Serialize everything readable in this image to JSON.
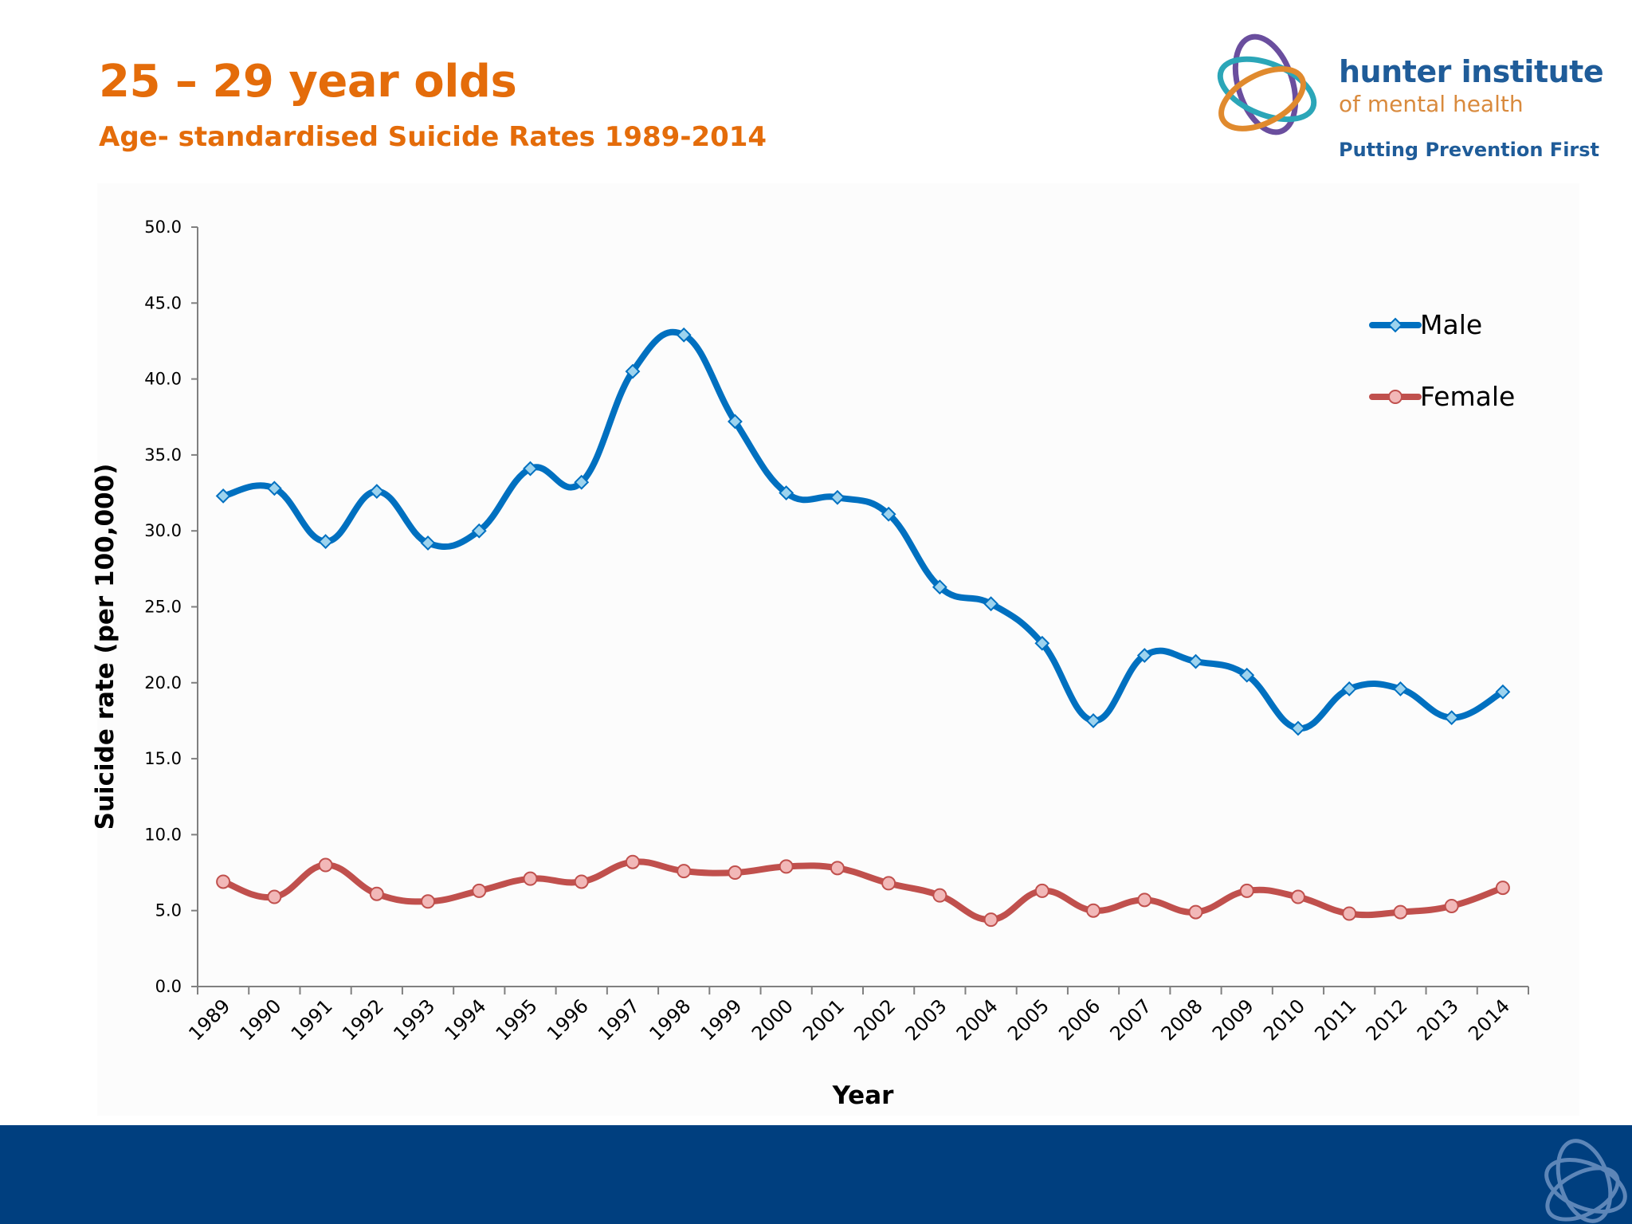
{
  "slide": {
    "title": "25 – 29 year olds",
    "subtitle": "Age- standardised Suicide Rates 1989-2014",
    "title_color": "#E46C0A"
  },
  "logo": {
    "name": "hunter institute",
    "sub": "of mental health",
    "tagline": "Putting Prevention First",
    "colors": {
      "name": "#1F5C99",
      "sub": "#D98A3D",
      "purple": "#6A4E9E",
      "teal": "#2BA6B8",
      "orange": "#E08A2E"
    }
  },
  "footer": {
    "band_color": "#003F7F"
  },
  "chart_data": {
    "type": "line",
    "title": "",
    "xlabel": "Year",
    "ylabel": "Suicide rate (per 100,000)",
    "ylim": [
      0,
      50
    ],
    "ytick_step": 5,
    "ytick_labels": [
      "0.0",
      "5.0",
      "10.0",
      "15.0",
      "20.0",
      "25.0",
      "30.0",
      "35.0",
      "40.0",
      "45.0",
      "50.0"
    ],
    "grid": false,
    "legend_position": "right",
    "categories": [
      "1989",
      "1990",
      "1991",
      "1992",
      "1993",
      "1994",
      "1995",
      "1996",
      "1997",
      "1998",
      "1999",
      "2000",
      "2001",
      "2002",
      "2003",
      "2004",
      "2005",
      "2006",
      "2007",
      "2008",
      "2009",
      "2010",
      "2011",
      "2012",
      "2013",
      "2014"
    ],
    "series": [
      {
        "name": "Male",
        "color": "#0070C0",
        "marker": "diamond",
        "marker_fill": "#9DD3EE",
        "values": [
          32.3,
          32.8,
          29.3,
          32.6,
          29.2,
          30.0,
          34.1,
          33.2,
          40.5,
          42.9,
          37.2,
          32.5,
          32.2,
          31.1,
          26.3,
          25.2,
          22.6,
          17.5,
          21.8,
          21.4,
          20.5,
          17.0,
          19.6,
          19.6,
          17.7,
          19.4
        ]
      },
      {
        "name": "Female",
        "color": "#C0504D",
        "marker": "circle",
        "marker_fill": "#F2B8B8",
        "values": [
          6.9,
          5.9,
          8.0,
          6.1,
          5.6,
          6.3,
          7.1,
          6.9,
          8.2,
          7.6,
          7.5,
          7.9,
          7.8,
          6.8,
          6.0,
          4.4,
          6.3,
          5.0,
          5.7,
          4.9,
          6.3,
          5.9,
          4.8,
          4.9,
          5.3,
          6.5
        ]
      }
    ]
  }
}
